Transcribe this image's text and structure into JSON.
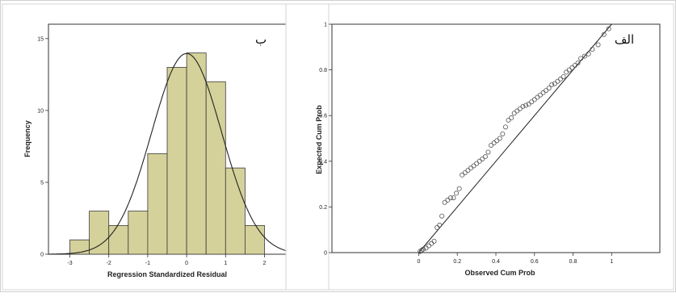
{
  "chart_data": [
    {
      "type": "bar",
      "panel_label": "ب",
      "xlabel": "Regression Standardized Residual",
      "ylabel": "Frequency",
      "bin_edges": [
        -3.0,
        -2.5,
        -2.0,
        -1.5,
        -1.0,
        -0.5,
        0.0,
        0.5,
        1.0,
        1.5,
        2.0
      ],
      "values": [
        1,
        3,
        2,
        3,
        7,
        13,
        14,
        12,
        6,
        2
      ],
      "bar_color": "#d4d19a",
      "bar_edge_color": "#3a3a3a",
      "xlim": [
        -3.55,
        2.55
      ],
      "ylim": [
        0,
        16
      ],
      "xticks": [
        -3,
        -2,
        -1,
        0,
        1,
        2
      ],
      "yticks": [
        0,
        5,
        10,
        15
      ],
      "normal_curve": {
        "mean": 0.0,
        "sd": 0.9,
        "n": 63,
        "bin_width": 0.5
      },
      "grid": false
    },
    {
      "type": "scatter",
      "panel_label": "الف",
      "xlabel": "Observed Cum Prob",
      "ylabel": "Expected Cum Prob",
      "xlim": [
        -0.45,
        1.25
      ],
      "ylim": [
        0,
        1
      ],
      "xticks": [
        0.0,
        0.2,
        0.4,
        0.6,
        0.8,
        1.0
      ],
      "yticks": [
        0.0,
        0.2,
        0.4,
        0.6,
        0.8,
        1.0
      ],
      "reference_line": [
        [
          0,
          0
        ],
        [
          1,
          1
        ]
      ],
      "x": [
        0.007,
        0.015,
        0.023,
        0.038,
        0.052,
        0.066,
        0.08,
        0.095,
        0.108,
        0.12,
        0.135,
        0.15,
        0.165,
        0.18,
        0.195,
        0.21,
        0.225,
        0.24,
        0.255,
        0.27,
        0.285,
        0.3,
        0.315,
        0.33,
        0.345,
        0.36,
        0.375,
        0.39,
        0.405,
        0.42,
        0.435,
        0.45,
        0.465,
        0.48,
        0.495,
        0.51,
        0.525,
        0.54,
        0.555,
        0.57,
        0.585,
        0.6,
        0.615,
        0.63,
        0.645,
        0.66,
        0.675,
        0.69,
        0.705,
        0.72,
        0.735,
        0.75,
        0.765,
        0.78,
        0.795,
        0.81,
        0.825,
        0.84,
        0.86,
        0.88,
        0.9,
        0.93,
        0.96,
        0.985
      ],
      "y": [
        0.005,
        0.01,
        0.015,
        0.02,
        0.03,
        0.04,
        0.05,
        0.11,
        0.12,
        0.16,
        0.22,
        0.23,
        0.24,
        0.24,
        0.26,
        0.28,
        0.34,
        0.35,
        0.36,
        0.37,
        0.38,
        0.39,
        0.4,
        0.41,
        0.42,
        0.44,
        0.47,
        0.48,
        0.49,
        0.5,
        0.52,
        0.55,
        0.58,
        0.59,
        0.61,
        0.62,
        0.63,
        0.64,
        0.645,
        0.65,
        0.66,
        0.67,
        0.68,
        0.69,
        0.7,
        0.71,
        0.72,
        0.735,
        0.74,
        0.75,
        0.76,
        0.77,
        0.79,
        0.8,
        0.81,
        0.82,
        0.83,
        0.85,
        0.86,
        0.87,
        0.89,
        0.91,
        0.955,
        0.98
      ],
      "marker": "open-circle",
      "marker_color": "#555555",
      "grid": false
    }
  ]
}
